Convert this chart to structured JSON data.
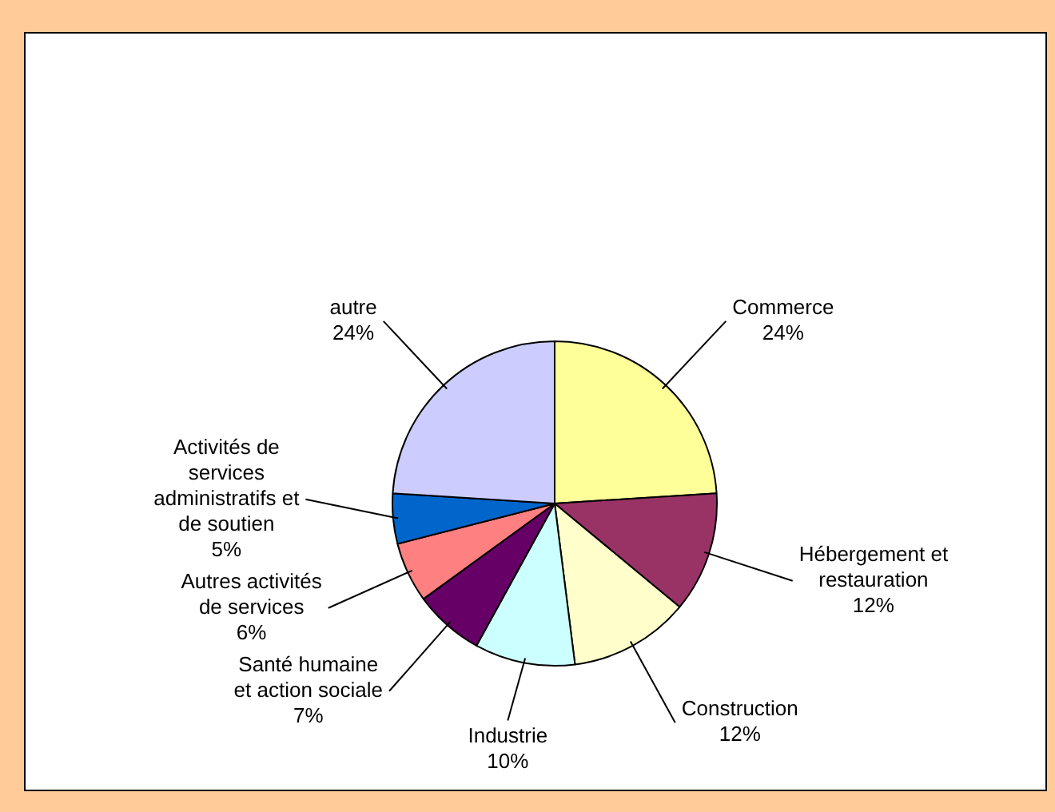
{
  "chart_data": {
    "type": "pie",
    "categories": [
      "Commerce",
      "Hébergement et restauration",
      "Construction",
      "Industrie",
      "Santé humaine et action sociale",
      "Autres activités de services",
      "Activités de services administratifs et de soutien",
      "autre"
    ],
    "values": [
      24,
      12,
      12,
      10,
      7,
      6,
      5,
      24
    ],
    "colors": [
      "#ffff99",
      "#993366",
      "#ffffcc",
      "#ccffff",
      "#660066",
      "#ff8080",
      "#0066cc",
      "#ccccff"
    ],
    "value_labels": [
      "24%",
      "12%",
      "12%",
      "10%",
      "7%",
      "6%",
      "5%",
      "24%"
    ]
  }
}
